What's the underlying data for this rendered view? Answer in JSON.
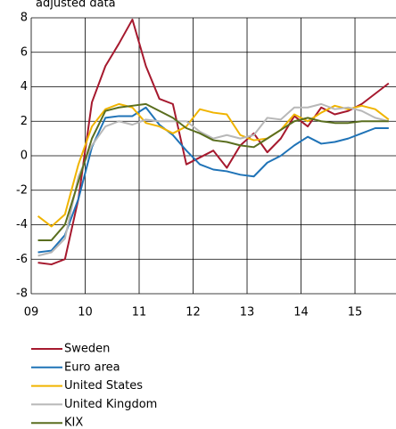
{
  "chart_data": {
    "type": "line",
    "title": "adjusted data",
    "x": [
      2009.125,
      2009.375,
      2009.625,
      2009.875,
      2010.125,
      2010.375,
      2010.625,
      2010.875,
      2011.125,
      2011.375,
      2011.625,
      2011.875,
      2012.125,
      2012.375,
      2012.625,
      2012.875,
      2013.125,
      2013.375,
      2013.625,
      2013.875,
      2014.125,
      2014.375,
      2014.625,
      2014.875,
      2015.125,
      2015.375,
      2015.625
    ],
    "xlim": [
      2009,
      2015.76
    ],
    "xticks": [
      {
        "value": 2009,
        "label": "09"
      },
      {
        "value": 2010,
        "label": "10"
      },
      {
        "value": 2011,
        "label": "11"
      },
      {
        "value": 2012,
        "label": "12"
      },
      {
        "value": 2013,
        "label": "13"
      },
      {
        "value": 2014,
        "label": "14"
      },
      {
        "value": 2015,
        "label": "15"
      }
    ],
    "ylim": [
      -8,
      8
    ],
    "yticks": [
      -8,
      -6,
      -4,
      -2,
      0,
      2,
      4,
      6,
      8
    ],
    "grid": true,
    "series": [
      {
        "name": "Sweden",
        "color": "#a6192e",
        "values": [
          -6.2,
          -6.3,
          -6.0,
          -2.5,
          3.1,
          5.2,
          6.5,
          7.9,
          5.2,
          3.3,
          3.0,
          -0.5,
          -0.1,
          0.3,
          -0.7,
          0.6,
          1.3,
          0.2,
          1.0,
          2.3,
          1.7,
          2.8,
          2.4,
          2.6,
          3.0,
          3.6,
          4.2
        ]
      },
      {
        "name": "Euro area",
        "color": "#1f73b7",
        "values": [
          -5.6,
          -5.5,
          -4.6,
          -2.5,
          0.5,
          2.2,
          2.3,
          2.3,
          2.8,
          1.8,
          1.2,
          0.3,
          -0.5,
          -0.8,
          -0.9,
          -1.1,
          -1.2,
          -0.4,
          0.0,
          0.6,
          1.1,
          0.7,
          0.8,
          1.0,
          1.3,
          1.6,
          1.6
        ]
      },
      {
        "name": "United States",
        "color": "#f0b400",
        "values": [
          -3.5,
          -4.1,
          -3.4,
          -0.5,
          1.7,
          2.7,
          3.0,
          2.8,
          1.9,
          1.7,
          1.3,
          1.7,
          2.7,
          2.5,
          2.4,
          1.2,
          0.9,
          1.0,
          1.5,
          2.4,
          2.0,
          2.5,
          2.9,
          2.7,
          2.9,
          2.7,
          2.1
        ]
      },
      {
        "name": "United Kingdom",
        "color": "#b8b8b8",
        "values": [
          -5.8,
          -5.6,
          -4.8,
          -1.2,
          0.6,
          1.7,
          2.0,
          1.8,
          2.1,
          2.0,
          2.0,
          2.0,
          1.4,
          1.0,
          1.2,
          1.0,
          1.2,
          2.2,
          2.1,
          2.8,
          2.8,
          3.0,
          2.7,
          2.8,
          2.6,
          2.2,
          2.0
        ]
      },
      {
        "name": "KIX",
        "color": "#5a6e1f",
        "values": [
          -4.9,
          -4.9,
          -4.0,
          -1.5,
          1.0,
          2.6,
          2.8,
          2.9,
          3.0,
          2.6,
          2.2,
          1.6,
          1.3,
          0.9,
          0.8,
          0.6,
          0.5,
          1.0,
          1.5,
          2.0,
          2.2,
          2.0,
          1.9,
          1.9,
          2.0,
          2.0,
          2.0
        ]
      }
    ]
  }
}
